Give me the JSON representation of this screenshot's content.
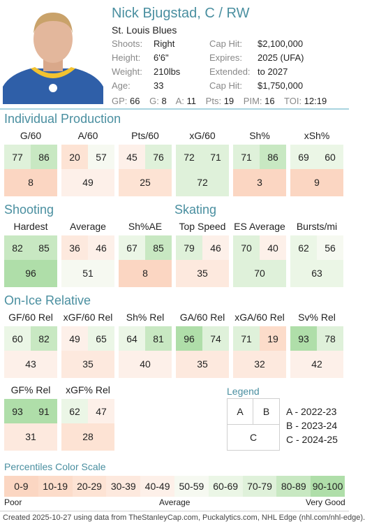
{
  "player": {
    "name": "Nick Bjugstad, C / RW",
    "team": "St. Louis Blues",
    "left_info": [
      {
        "label": "Shoots:",
        "value": "Right"
      },
      {
        "label": "Height:",
        "value": "6'6\""
      },
      {
        "label": "Weight:",
        "value": "210lbs"
      },
      {
        "label": "Age:",
        "value": "33"
      }
    ],
    "right_info": [
      {
        "label": "Cap Hit:",
        "value": "$2,100,000"
      },
      {
        "label": "Expires:",
        "value": "2025 (UFA)"
      },
      {
        "label": "Extended:",
        "value": "to 2027"
      },
      {
        "label": "Cap Hit:",
        "value": "$1,750,000"
      }
    ],
    "statline": [
      {
        "label": "GP:",
        "value": "66"
      },
      {
        "label": "G:",
        "value": "8"
      },
      {
        "label": "A:",
        "value": "11"
      },
      {
        "label": "Pts:",
        "value": "19"
      },
      {
        "label": "PIM:",
        "value": "16"
      },
      {
        "label": "TOI:",
        "value": "12:19"
      }
    ]
  },
  "sections": {
    "individual": "Individual Production",
    "shooting": "Shooting",
    "skating": "Skating",
    "onice": "On-Ice Relative",
    "legend": "Legend",
    "scale": "Percentiles Color Scale"
  },
  "cards": [
    {
      "title": "G/60",
      "a": "77",
      "b": "86",
      "c": "8"
    },
    {
      "title": "A/60",
      "a": "20",
      "b": "57",
      "c": "49"
    },
    {
      "title": "Pts/60",
      "a": "45",
      "b": "76",
      "c": "25"
    },
    {
      "title": "xG/60",
      "a": "72",
      "b": "71",
      "c": "72"
    },
    {
      "title": "Sh%",
      "a": "71",
      "b": "86",
      "c": "3"
    },
    {
      "title": "xSh%",
      "a": "69",
      "b": "60",
      "c": "9"
    },
    {
      "title": "Hardest",
      "a": "82",
      "b": "85",
      "c": "96"
    },
    {
      "title": "Average",
      "a": "36",
      "b": "46",
      "c": "51"
    },
    {
      "title": "Sh%AE",
      "a": "67",
      "b": "85",
      "c": "8"
    },
    {
      "title": "Top Speed",
      "a": "79",
      "b": "46",
      "c": "35"
    },
    {
      "title": "ES Average",
      "a": "70",
      "b": "40",
      "c": "70"
    },
    {
      "title": "Bursts/mi",
      "a": "62",
      "b": "56",
      "c": "63"
    },
    {
      "title": "GF/60 Rel",
      "a": "60",
      "b": "82",
      "c": "43"
    },
    {
      "title": "xGF/60 Rel",
      "a": "49",
      "b": "65",
      "c": "35"
    },
    {
      "title": "Sh% Rel",
      "a": "64",
      "b": "81",
      "c": "40"
    },
    {
      "title": "GA/60 Rel",
      "a": "96",
      "b": "74",
      "c": "35"
    },
    {
      "title": "xGA/60 Rel",
      "a": "71",
      "b": "19",
      "c": "32"
    },
    {
      "title": "Sv% Rel",
      "a": "93",
      "b": "78",
      "c": "42"
    },
    {
      "title": "GF% Rel",
      "a": "93",
      "b": "91",
      "c": "31"
    },
    {
      "title": "xGF% Rel",
      "a": "62",
      "b": "47",
      "c": "28"
    }
  ],
  "legend": {
    "box_a": "A",
    "box_b": "B",
    "box_c": "C",
    "items": [
      "A - 2022-23",
      "B - 2023-24",
      "C - 2024-25"
    ]
  },
  "scale": {
    "segments": [
      "0-9",
      "10-19",
      "20-29",
      "30-39",
      "40-49",
      "50-59",
      "60-69",
      "70-79",
      "80-89",
      "90-100"
    ],
    "low_label": "Poor",
    "mid_label": "Average",
    "high_label": "Very Good"
  },
  "footer": "Created 2025-10-27 using data from TheStanleyCap.com, Puckalytics.com, NHL Edge (nhl.com/nhl-edge)."
}
